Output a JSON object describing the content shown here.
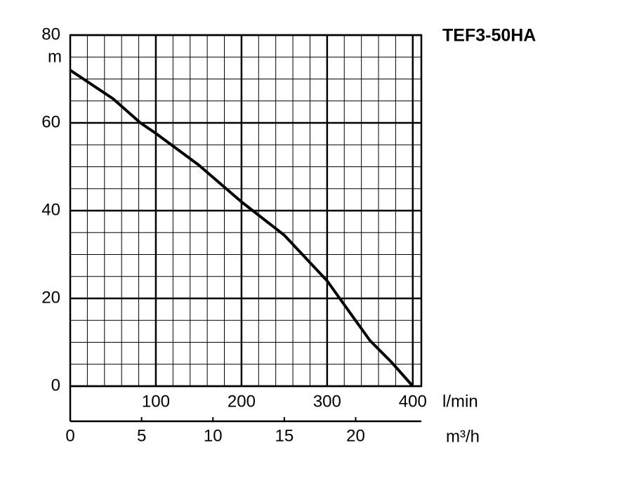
{
  "chart_data": {
    "type": "line",
    "title": "TEF3-50HA",
    "y_label": "m",
    "x_label": "l/min",
    "x2_label": "m³/h",
    "xlim": [
      0,
      410
    ],
    "xticks": [
      100,
      200,
      300,
      400
    ],
    "x2lim": [
      0,
      24.6
    ],
    "x2ticks": [
      0,
      5,
      10,
      15,
      20
    ],
    "ylim": [
      0,
      80
    ],
    "yticks": [
      0,
      20,
      40,
      60,
      80
    ],
    "grid": true,
    "minor_grid_step": {
      "x": 20,
      "y": 5
    },
    "series": [
      {
        "color": "#000000",
        "x": [
          0,
          50,
          82,
          100,
          150,
          200,
          250,
          300,
          350,
          375,
          400
        ],
        "values": [
          72,
          65.5,
          60,
          57.6,
          50.4,
          42,
          34.4,
          24,
          10.4,
          5.5,
          0
        ]
      }
    ]
  }
}
